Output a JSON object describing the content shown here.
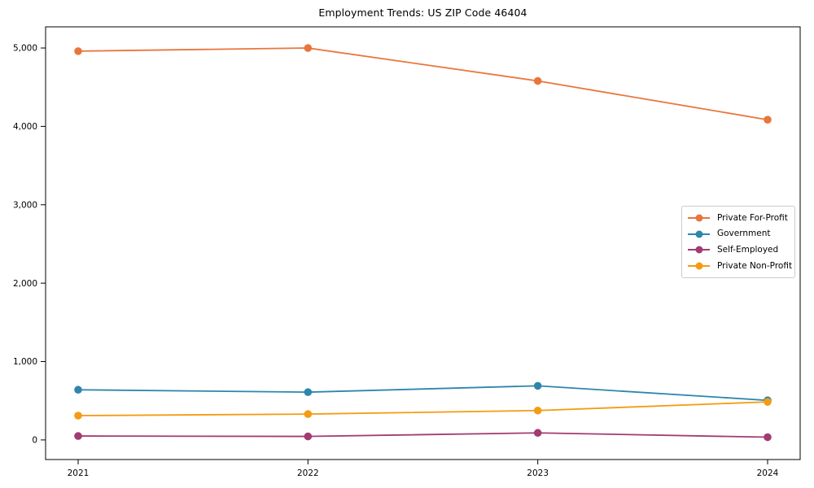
{
  "chart_data": {
    "type": "line",
    "title": "Employment Trends: US ZIP Code 46404",
    "x": [
      "2021",
      "2022",
      "2023",
      "2024"
    ],
    "series": [
      {
        "name": "Private For-Profit",
        "color": "#E8763C",
        "values": [
          4960,
          5000,
          4580,
          4085
        ]
      },
      {
        "name": "Government",
        "color": "#2E86AB",
        "values": [
          640,
          610,
          690,
          505
        ]
      },
      {
        "name": "Self-Employed",
        "color": "#A23B72",
        "values": [
          50,
          45,
          90,
          35
        ]
      },
      {
        "name": "Private Non-Profit",
        "color": "#F39C12",
        "values": [
          310,
          330,
          375,
          485
        ]
      }
    ],
    "yticks": [
      "0",
      "1,000",
      "2,000",
      "3,000",
      "4,000",
      "5,000"
    ],
    "ytick_values": [
      0,
      1000,
      2000,
      3000,
      4000,
      5000
    ],
    "ylim": [
      -250,
      5270
    ],
    "xlabel": "",
    "ylabel": "",
    "grid": false,
    "legend_position": "center-right",
    "frame_color": "#000000",
    "background_color": "#ffffff"
  }
}
